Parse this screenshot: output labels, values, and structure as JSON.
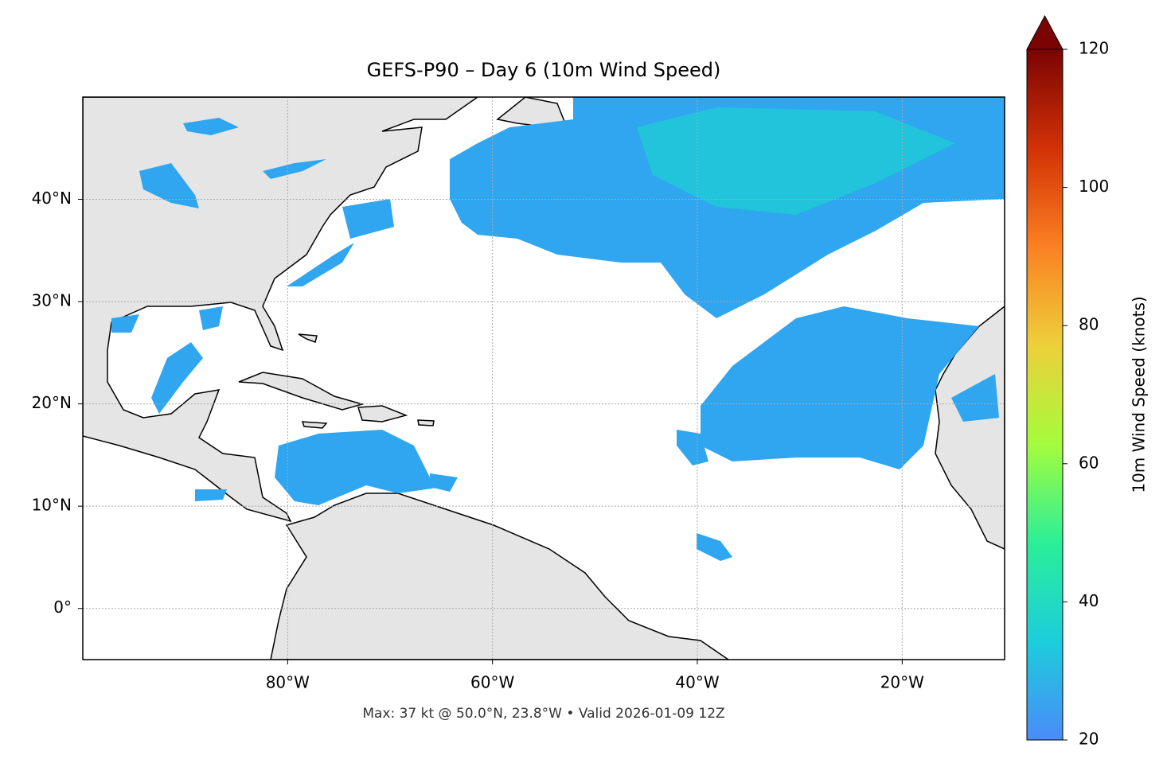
{
  "chart_data": {
    "type": "map",
    "title": "GEFS-P90 – Day 6 (10m Wind Speed)",
    "xlim": [
      -100,
      -10
    ],
    "ylim": [
      -5,
      50
    ],
    "xticks": [
      {
        "value": -80,
        "label": "80°W"
      },
      {
        "value": -60,
        "label": "60°W"
      },
      {
        "value": -40,
        "label": "40°W"
      },
      {
        "value": -20,
        "label": "20°W"
      }
    ],
    "yticks": [
      {
        "value": 0,
        "label": "0°"
      },
      {
        "value": 10,
        "label": "10°N"
      },
      {
        "value": 20,
        "label": "20°N"
      },
      {
        "value": 30,
        "label": "30°N"
      },
      {
        "value": 40,
        "label": "40°N"
      }
    ],
    "grid": true,
    "note": "Max: 37 kt @ 50.0°N, 23.8°W • Valid 2026-01-09 12Z",
    "colorbar": {
      "label": "10m Wind Speed (knots)",
      "clim": [
        20,
        120
      ],
      "ticks": [
        20,
        40,
        60,
        80,
        100,
        120
      ],
      "colors": [
        "#4a8bf9",
        "#1ccddc",
        "#2bef98",
        "#a4fc3c",
        "#edd03a",
        "#fb8022",
        "#d23105",
        "#7a0403"
      ]
    }
  }
}
